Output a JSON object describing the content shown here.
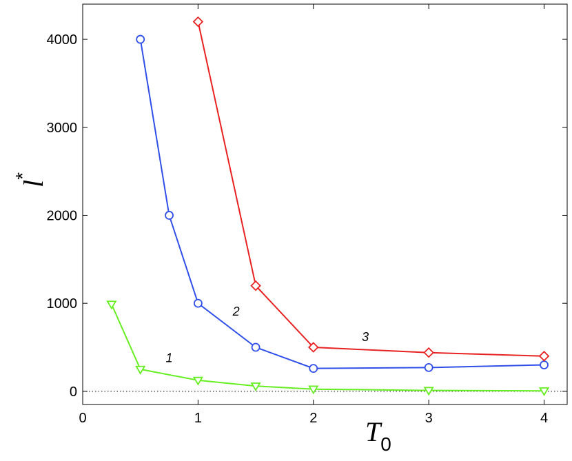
{
  "chart_data": {
    "type": "line",
    "title": "",
    "xlabel": "T",
    "xlabel_sub": "0",
    "ylabel": "l",
    "ylabel_sup": "*",
    "xlim": [
      0,
      4.2
    ],
    "ylim": [
      -150,
      4400
    ],
    "xticks": [
      0,
      1,
      2,
      3,
      4
    ],
    "yticks": [
      0,
      1000,
      2000,
      3000,
      4000
    ],
    "x_tick_labels": [
      "0",
      "1",
      "2",
      "3",
      "4"
    ],
    "y_tick_labels": [
      "0",
      "1000",
      "2000",
      "3000",
      "4000"
    ],
    "grid": false,
    "zero_line": "dotted",
    "series": [
      {
        "label": "1",
        "color": "#66ee22",
        "marker": "triangle-down",
        "x": [
          0.25,
          0.5,
          1,
          1.5,
          2,
          3,
          4
        ],
        "y": [
          990,
          250,
          125,
          60,
          25,
          10,
          5
        ],
        "label_pos": [
          0.75,
          330
        ]
      },
      {
        "label": "2",
        "color": "#2f4fe8",
        "marker": "circle",
        "x": [
          0.5,
          0.75,
          1,
          1.5,
          2,
          3,
          4
        ],
        "y": [
          4000,
          2000,
          1000,
          500,
          260,
          270,
          300
        ],
        "label_pos": [
          1.33,
          860
        ]
      },
      {
        "label": "3",
        "color": "#e82222",
        "marker": "diamond",
        "x": [
          1,
          1.5,
          2,
          3,
          4
        ],
        "y": [
          4200,
          1200,
          500,
          440,
          400
        ],
        "label_pos": [
          2.45,
          570
        ]
      }
    ]
  }
}
